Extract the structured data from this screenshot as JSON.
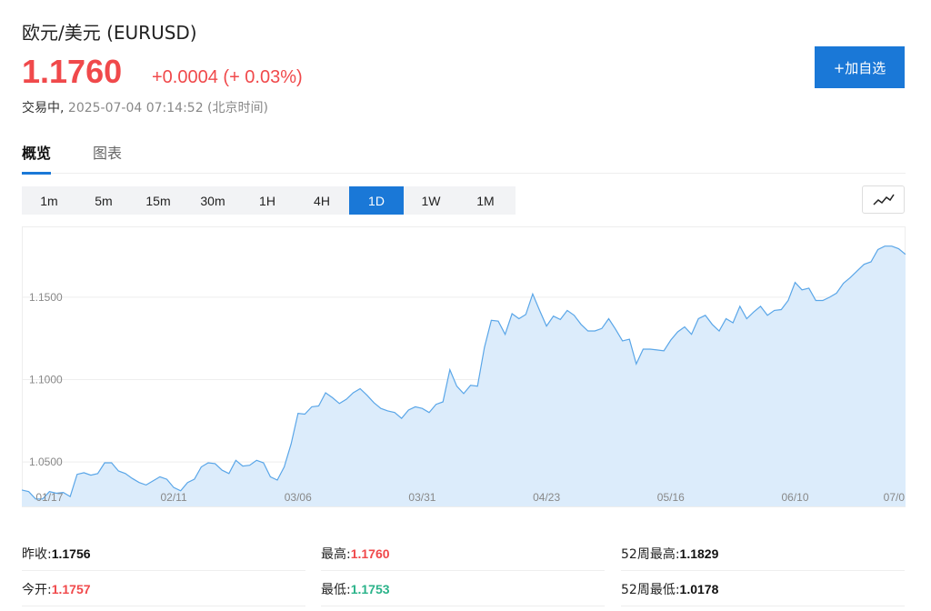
{
  "header": {
    "title": "欧元/美元 (EURUSD)",
    "price": "1.1760",
    "change": "+0.0004 (+ 0.03%)",
    "status": "交易中,",
    "time": "2025-07-04 07:14:52 (北京时间)",
    "add_button": "+加自选"
  },
  "colors": {
    "up": "#f0494b",
    "down": "#2bb38a",
    "accent": "#1a78d7",
    "line": "#5aa6e8",
    "fill": "#dcecfb"
  },
  "tabs": [
    {
      "label": "概览",
      "active": true
    },
    {
      "label": "图表",
      "active": false
    }
  ],
  "ranges": [
    "1m",
    "5m",
    "15m",
    "30m",
    "1H",
    "4H",
    "1D",
    "1W",
    "1M"
  ],
  "active_range": "1D",
  "chart_type_icon": "line-chart-icon",
  "chart_data": {
    "type": "area",
    "grid": true,
    "ylim": [
      1.023,
      1.193
    ],
    "y_ticks": [
      "1.0500",
      "1.1000",
      "1.1500"
    ],
    "y_tick_values": [
      1.05,
      1.1,
      1.15
    ],
    "x_tick_labels": [
      "01/17",
      "02/11",
      "03/06",
      "03/31",
      "04/23",
      "05/16",
      "06/10",
      "07/0"
    ],
    "x_tick_index": [
      4,
      22,
      40,
      58,
      76,
      94,
      112,
      130
    ],
    "values": [
      1.033,
      1.032,
      1.0275,
      1.0275,
      1.032,
      1.031,
      1.0315,
      1.029,
      1.0425,
      1.0435,
      1.042,
      1.043,
      1.0495,
      1.0495,
      1.0445,
      1.043,
      1.04,
      1.0375,
      1.036,
      1.0385,
      1.041,
      1.0395,
      1.0345,
      1.0325,
      1.0375,
      1.0395,
      1.047,
      1.0495,
      1.049,
      1.045,
      1.043,
      1.051,
      1.0475,
      1.048,
      1.051,
      1.0495,
      1.041,
      1.039,
      1.047,
      1.061,
      1.0795,
      1.079,
      1.0835,
      1.084,
      1.092,
      1.089,
      1.0855,
      1.088,
      1.092,
      1.0945,
      1.0905,
      1.086,
      1.0825,
      1.081,
      1.08,
      1.0765,
      1.0815,
      1.0835,
      1.0825,
      1.08,
      1.085,
      1.0865,
      1.106,
      1.096,
      1.0915,
      1.0965,
      1.096,
      1.1195,
      1.136,
      1.1355,
      1.1275,
      1.14,
      1.137,
      1.1395,
      1.152,
      1.142,
      1.1325,
      1.1385,
      1.1365,
      1.142,
      1.139,
      1.1335,
      1.1295,
      1.1295,
      1.131,
      1.137,
      1.1305,
      1.1235,
      1.1245,
      1.1095,
      1.1185,
      1.1185,
      1.118,
      1.1175,
      1.124,
      1.129,
      1.132,
      1.1275,
      1.137,
      1.139,
      1.1335,
      1.1295,
      1.137,
      1.1345,
      1.1445,
      1.137,
      1.141,
      1.1445,
      1.139,
      1.142,
      1.1425,
      1.148,
      1.159,
      1.1545,
      1.1555,
      1.148,
      1.148,
      1.15,
      1.1525,
      1.1585,
      1.162,
      1.166,
      1.17,
      1.1715,
      1.179,
      1.181,
      1.181,
      1.1795,
      1.176
    ]
  },
  "stats": {
    "prev_close_label": "昨收:",
    "prev_close": "1.1756",
    "open_label": "今开:",
    "open": "1.1757",
    "high_label": "最高:",
    "high": "1.1760",
    "low_label": "最低:",
    "low": "1.1753",
    "high52_label": "52周最高:",
    "high52": "1.1829",
    "low52_label": "52周最低:",
    "low52": "1.0178"
  }
}
